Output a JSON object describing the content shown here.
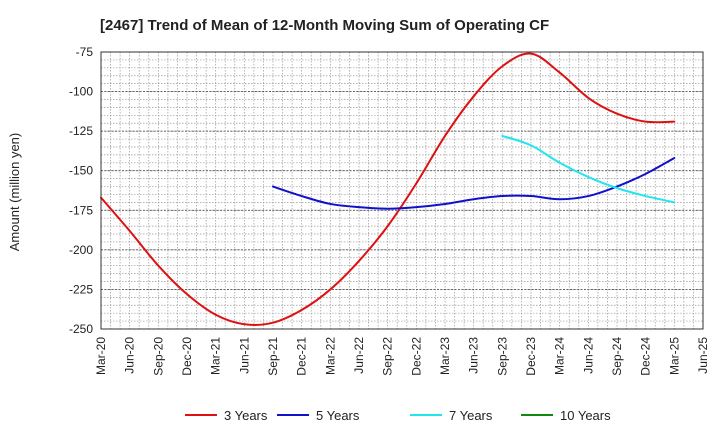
{
  "chart_data": {
    "type": "line",
    "title": "[2467]  Trend of Mean of 12-Month Moving Sum of Operating CF",
    "ylabel": "Amount (million yen)",
    "xlabel": "",
    "ylim": [
      -250,
      -75
    ],
    "yticks": [
      -75,
      -100,
      -125,
      -150,
      -175,
      -200,
      -225,
      -250
    ],
    "categories": [
      "Mar-20",
      "Jun-20",
      "Sep-20",
      "Dec-20",
      "Mar-21",
      "Jun-21",
      "Sep-21",
      "Dec-21",
      "Mar-22",
      "Jun-22",
      "Sep-22",
      "Dec-22",
      "Mar-23",
      "Jun-23",
      "Sep-23",
      "Dec-23",
      "Mar-24",
      "Jun-24",
      "Sep-24",
      "Dec-24",
      "Mar-25",
      "Jun-25"
    ],
    "grid": true,
    "legend_position": "bottom",
    "series": [
      {
        "name": "3 Years",
        "color": "#dd1111",
        "values": [
          -167,
          -188,
          -210,
          -228,
          -241,
          -247,
          -246,
          -238,
          -225,
          -207,
          -185,
          -158,
          -128,
          -103,
          -84,
          -76,
          -88,
          -104,
          -114,
          -119,
          -119,
          null
        ]
      },
      {
        "name": "5 Years",
        "color": "#1111cc",
        "values": [
          null,
          null,
          null,
          null,
          null,
          null,
          -160,
          -166,
          -171,
          -173,
          -174,
          -173,
          -171,
          -168,
          -166,
          -166,
          -168,
          -166,
          -160,
          -152,
          -142,
          null
        ]
      },
      {
        "name": "7 Years",
        "color": "#22e5ee",
        "values": [
          null,
          null,
          null,
          null,
          null,
          null,
          null,
          null,
          null,
          null,
          null,
          null,
          null,
          null,
          -128,
          -134,
          -145,
          -154,
          -161,
          -166,
          -170,
          null
        ]
      },
      {
        "name": "10 Years",
        "color": "#118811",
        "values": [
          null,
          null,
          null,
          null,
          null,
          null,
          null,
          null,
          null,
          null,
          null,
          null,
          null,
          null,
          null,
          null,
          null,
          null,
          null,
          null,
          null,
          null
        ]
      }
    ]
  }
}
